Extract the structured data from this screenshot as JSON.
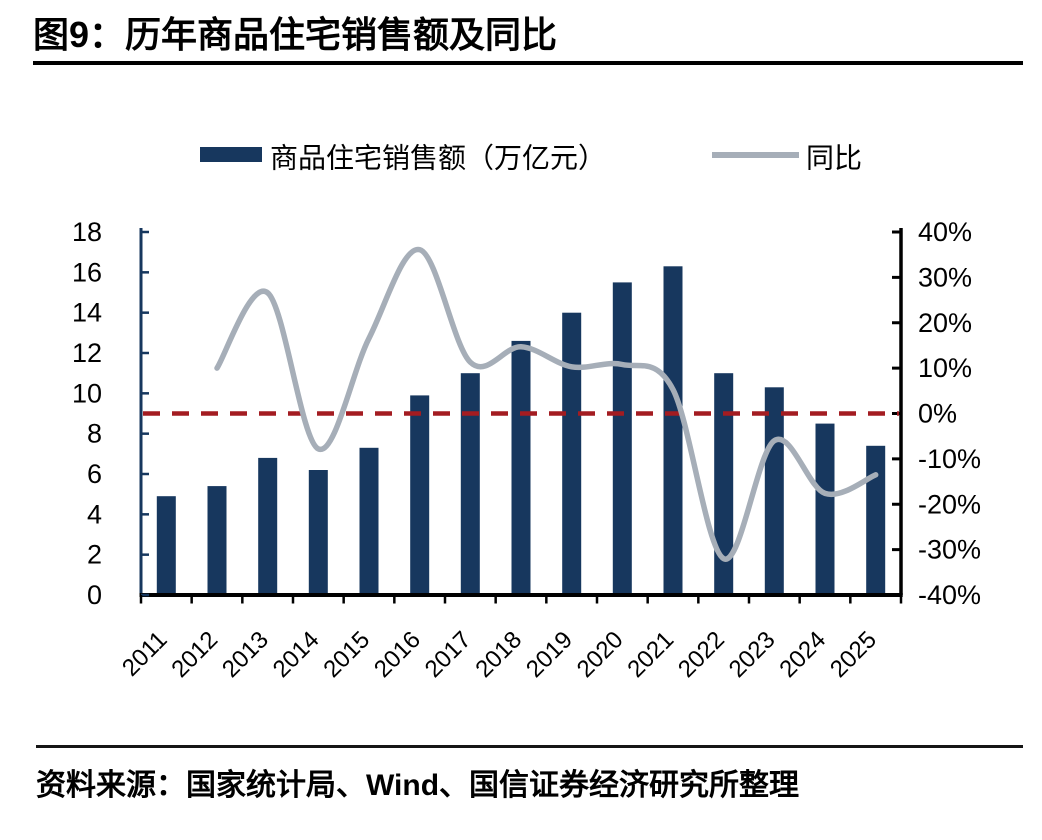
{
  "page": {
    "title": "图9：历年商品住宅销售额及同比",
    "source": "资料来源：国家统计局、Wind、国信证券经济研究所整理"
  },
  "legend": {
    "bar_label": "商品住宅销售额（万亿元）",
    "line_label": "同比",
    "position": "top"
  },
  "colors": {
    "bar": "#17375e",
    "line": "#a6aeb8",
    "zero_line": "#a31c21",
    "left_axis": "#17375e",
    "axis_black": "#000000",
    "text": "#000000",
    "background": "#ffffff"
  },
  "chart_data": {
    "type": "bar",
    "subtype": "bar+line dual-axis",
    "title": "历年商品住宅销售额及同比",
    "categories": [
      "2011",
      "2012",
      "2013",
      "2014",
      "2015",
      "2016",
      "2017",
      "2018",
      "2019",
      "2020",
      "2021",
      "2022",
      "2023",
      "2024",
      "2025"
    ],
    "series": [
      {
        "name": "商品住宅销售额（万亿元）",
        "type": "bar",
        "axis": "left",
        "values": [
          4.9,
          5.4,
          6.8,
          6.2,
          7.3,
          9.9,
          11.0,
          12.6,
          14.0,
          15.5,
          16.3,
          11.0,
          10.3,
          8.5,
          7.4
        ]
      },
      {
        "name": "同比",
        "type": "line",
        "axis": "right",
        "unit": "%",
        "values": [
          null,
          10.0,
          26.6,
          -7.8,
          16.6,
          36.1,
          11.3,
          14.7,
          10.3,
          10.8,
          5.3,
          -32.0,
          -6.0,
          -17.6,
          -13.5
        ]
      }
    ],
    "left_axis": {
      "min": 0,
      "max": 18,
      "step": 2,
      "ticks": [
        "18",
        "16",
        "14",
        "12",
        "10",
        "8",
        "6",
        "4",
        "2",
        "0"
      ]
    },
    "right_axis": {
      "min": -40,
      "max": 40,
      "step": 10,
      "ticks": [
        "40%",
        "30%",
        "20%",
        "10%",
        "0%",
        "-10%",
        "-20%",
        "-30%",
        "-40%"
      ]
    },
    "reference_line": {
      "axis": "right",
      "value": 0,
      "style": "dashed",
      "color": "#a31c21"
    },
    "grid": false,
    "legend_position": "top",
    "x_label_rotation": -45
  }
}
